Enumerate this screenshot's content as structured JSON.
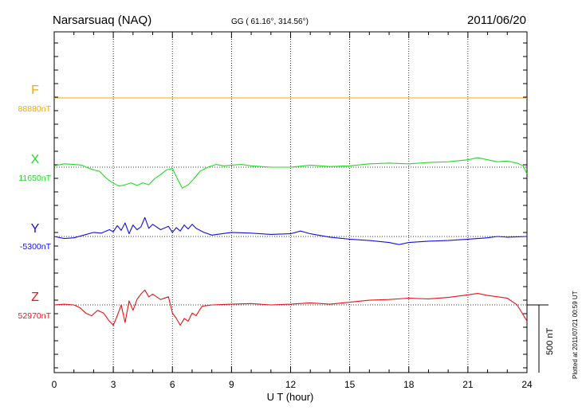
{
  "header": {
    "station": "Narsarsuaq (NAQ)",
    "coords": "GG ( 61.16°, 314.56°)",
    "date": "2011/06/20"
  },
  "side_note": "Plotted at 2011/07/21 00:59 UT",
  "scale_label": "500 nT",
  "chart_data": {
    "type": "line",
    "xlabel": "U T (hour)",
    "xlim": [
      0,
      24
    ],
    "xticks": [
      "0",
      "3",
      "6",
      "9",
      "12",
      "15",
      "18",
      "21",
      "24"
    ],
    "grid": true,
    "scale_nT": 500,
    "series": [
      {
        "name": "F",
        "baseline_label": "88880nT",
        "color": "#f5a800",
        "x": [
          0,
          24
        ],
        "y": [
          0,
          0
        ]
      },
      {
        "name": "X",
        "baseline_label": "11650nT",
        "color": "#22dd22",
        "x": [
          0,
          0.5,
          1,
          1.4,
          1.7,
          2.0,
          2.3,
          2.6,
          2.9,
          3.1,
          3.3,
          3.6,
          3.9,
          4.2,
          4.5,
          4.8,
          5.1,
          5.4,
          5.7,
          6.0,
          6.3,
          6.5,
          6.8,
          7.1,
          7.4,
          7.8,
          8.2,
          8.6,
          9.0,
          9.5,
          10,
          11,
          12,
          13,
          14,
          15,
          16,
          17,
          18,
          19,
          20,
          21,
          21.5,
          22,
          22.5,
          23,
          23.5,
          23.8,
          24
        ],
        "y": [
          10,
          25,
          20,
          15,
          -5,
          -20,
          -30,
          -75,
          -110,
          -125,
          -140,
          -130,
          -115,
          -135,
          -115,
          -130,
          -85,
          -55,
          -20,
          -10,
          -100,
          -155,
          -130,
          -85,
          -30,
          0,
          20,
          10,
          15,
          20,
          10,
          0,
          0,
          15,
          5,
          10,
          25,
          30,
          25,
          35,
          40,
          55,
          70,
          55,
          40,
          45,
          30,
          10,
          -50
        ]
      },
      {
        "name": "Y",
        "baseline_label": "-5300nT",
        "color": "#1111dd",
        "x": [
          0,
          0.5,
          1,
          1.5,
          2.0,
          2.4,
          2.8,
          3.0,
          3.2,
          3.4,
          3.6,
          3.8,
          4.0,
          4.2,
          4.4,
          4.6,
          4.8,
          5.0,
          5.4,
          5.8,
          6.0,
          6.2,
          6.4,
          6.6,
          6.8,
          7.0,
          7.2,
          7.6,
          8,
          9,
          10,
          11,
          12,
          12.5,
          13,
          14,
          15,
          16,
          17,
          17.5,
          18,
          19,
          20,
          21,
          22,
          22.5,
          23,
          24
        ],
        "y": [
          0,
          -15,
          -10,
          10,
          30,
          25,
          50,
          35,
          80,
          45,
          100,
          20,
          85,
          50,
          70,
          140,
          60,
          90,
          50,
          75,
          30,
          65,
          40,
          85,
          55,
          90,
          60,
          30,
          10,
          30,
          25,
          15,
          20,
          40,
          20,
          -5,
          -20,
          -30,
          -45,
          -60,
          -45,
          -35,
          -30,
          -20,
          -10,
          0,
          -5,
          0
        ]
      },
      {
        "name": "Z",
        "baseline_label": "52970nT",
        "color": "#ee1111",
        "x": [
          0,
          0.5,
          1,
          1.3,
          1.6,
          1.9,
          2.2,
          2.5,
          2.8,
          3.0,
          3.2,
          3.4,
          3.6,
          3.8,
          4.0,
          4.2,
          4.4,
          4.6,
          4.8,
          5.0,
          5.4,
          5.8,
          6.0,
          6.2,
          6.4,
          6.6,
          6.8,
          7.0,
          7.2,
          7.5,
          8,
          9,
          10,
          11,
          12,
          13,
          14,
          15,
          16,
          17,
          18,
          19,
          20,
          21,
          21.5,
          22,
          23,
          23.5,
          24
        ],
        "y": [
          0,
          5,
          0,
          -20,
          -60,
          -80,
          -40,
          -60,
          -120,
          -150,
          -80,
          0,
          -130,
          30,
          -40,
          40,
          80,
          110,
          60,
          80,
          40,
          60,
          -60,
          -100,
          -150,
          -100,
          -120,
          -60,
          -80,
          -10,
          0,
          5,
          10,
          0,
          5,
          15,
          5,
          20,
          35,
          40,
          50,
          45,
          55,
          75,
          85,
          70,
          50,
          0,
          -120
        ]
      }
    ]
  }
}
